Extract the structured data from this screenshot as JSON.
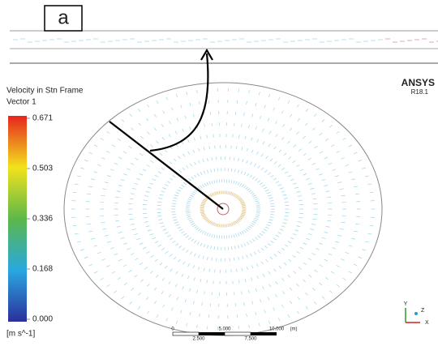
{
  "panel_label": "a",
  "legend": {
    "title": "Velocity in Stn Frame",
    "subtitle": "Vector 1",
    "ticks": [
      "0.671",
      "0.503",
      "0.336",
      "0.168",
      "0.000"
    ],
    "unit": "[m s^-1]"
  },
  "branding": {
    "name": "ANSYS",
    "version": "R18.1"
  },
  "scale_bar": {
    "top_labels": [
      "0",
      "5.000",
      "10.000",
      "(m)"
    ],
    "bottom_labels": [
      "2.500",
      "7.500"
    ]
  },
  "triad": {
    "labels": [
      "X",
      "Y",
      "Z"
    ]
  }
}
